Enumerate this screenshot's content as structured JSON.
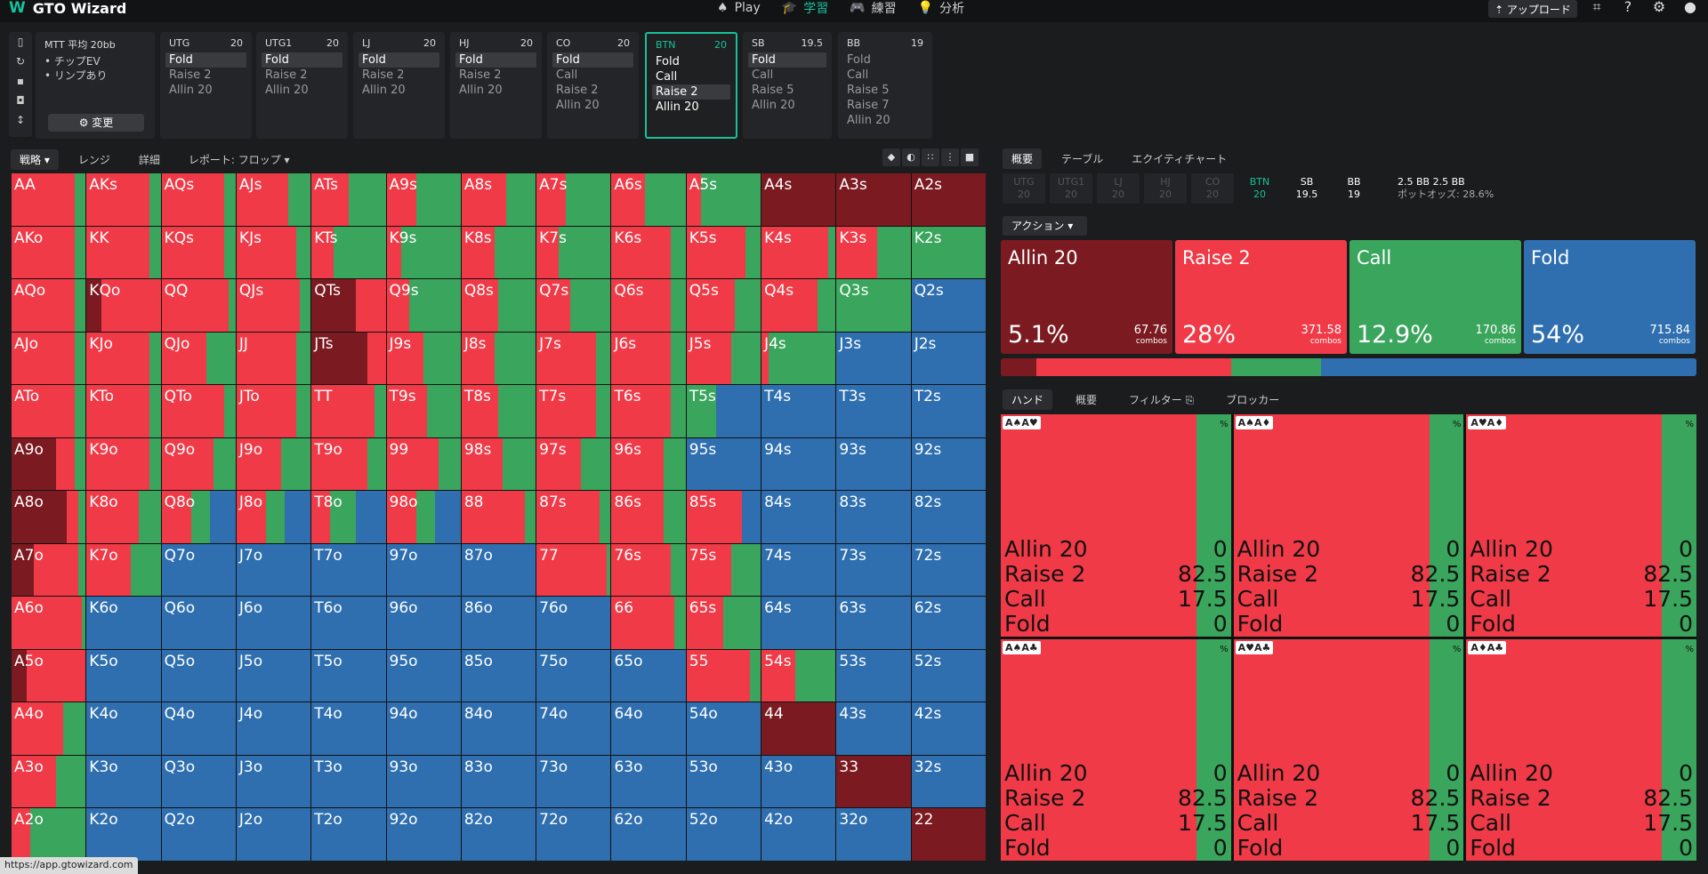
{
  "app": {
    "logo": "W",
    "title": "GTO Wizard"
  },
  "nav": {
    "items": [
      {
        "icon": "♠",
        "label": "Play",
        "active": false
      },
      {
        "icon": "🎓",
        "label": "学習",
        "active": true
      },
      {
        "icon": "🎮",
        "label": "練習",
        "active": false
      },
      {
        "icon": "💡",
        "label": "分析",
        "active": false
      }
    ]
  },
  "toolbar": {
    "upload": "⇡ アップロード"
  },
  "settings": {
    "title": "MTT  平均 20bb",
    "bullets": [
      "• チップEV",
      "• リンプあり"
    ],
    "change": "⚙ 変更"
  },
  "positions": [
    {
      "name": "UTG",
      "stack": "20",
      "actions": [
        "Fold",
        "Raise 2",
        "Allin 20"
      ],
      "selected": 0,
      "active": false
    },
    {
      "name": "UTG1",
      "stack": "20",
      "actions": [
        "Fold",
        "Raise 2",
        "Allin 20"
      ],
      "selected": 0,
      "active": false
    },
    {
      "name": "LJ",
      "stack": "20",
      "actions": [
        "Fold",
        "Raise 2",
        "Allin 20"
      ],
      "selected": 0,
      "active": false
    },
    {
      "name": "HJ",
      "stack": "20",
      "actions": [
        "Fold",
        "Raise 2",
        "Allin 20"
      ],
      "selected": 0,
      "active": false
    },
    {
      "name": "CO",
      "stack": "20",
      "actions": [
        "Fold",
        "Call",
        "Raise 2",
        "Allin 20"
      ],
      "selected": 0,
      "active": false
    },
    {
      "name": "BTN",
      "stack": "20",
      "actions": [
        "Fold",
        "Call",
        "Raise 2",
        "Allin 20"
      ],
      "selected": 2,
      "active": true
    },
    {
      "name": "SB",
      "stack": "19.5",
      "actions": [
        "Fold",
        "Call",
        "Raise 5",
        "Allin 20"
      ],
      "selected": 0,
      "active": false
    },
    {
      "name": "BB",
      "stack": "19",
      "actions": [
        "Fold",
        "Call",
        "Raise 5",
        "Raise 7",
        "Allin 20"
      ],
      "selected": -1,
      "active": false
    }
  ],
  "gridtabs": [
    "戦略 ▾",
    "レンジ",
    "詳細",
    "レポート: フロップ ▾"
  ],
  "righttabs": [
    "概要",
    "テーブル",
    "エクイティチャート"
  ],
  "posbar": [
    {
      "n": "UTG",
      "s": "20",
      "st": "dim"
    },
    {
      "n": "UTG1",
      "s": "20",
      "st": "dim"
    },
    {
      "n": "LJ",
      "s": "20",
      "st": "dim"
    },
    {
      "n": "HJ",
      "s": "20",
      "st": "dim"
    },
    {
      "n": "CO",
      "s": "20",
      "st": "dim"
    },
    {
      "n": "BTN",
      "s": "20",
      "st": "act"
    },
    {
      "n": "SB",
      "s": "19.5",
      "st": "lit"
    },
    {
      "n": "BB",
      "s": "19",
      "st": "lit"
    }
  ],
  "pot": {
    "line1": "2.5 BB  2.5 BB",
    "line2": "ポットオッズ:  28.6%"
  },
  "actionselect": "アクション ▾",
  "actions": [
    {
      "name": "Allin 20",
      "pct": "5.1%",
      "combos": "67.76",
      "unit": "combos",
      "color": "#7b1a20",
      "frac": 5.1
    },
    {
      "name": "Raise 2",
      "pct": "28%",
      "combos": "371.58",
      "unit": "combos",
      "color": "#f03a47",
      "frac": 28
    },
    {
      "name": "Call",
      "pct": "12.9%",
      "combos": "170.86",
      "unit": "combos",
      "color": "#3aa55c",
      "frac": 12.9
    },
    {
      "name": "Fold",
      "pct": "54%",
      "combos": "715.84",
      "unit": "combos",
      "color": "#2f6fb0",
      "frac": 54
    }
  ],
  "handtabs": [
    "ハンド",
    "概要",
    "フィルター ⎘",
    "ブロッカー"
  ],
  "combos": [
    {
      "card": "A♠A♥",
      "rows": [
        [
          "Allin 20",
          "0"
        ],
        [
          "Raise 2",
          "82.5"
        ],
        [
          "Call",
          "17.5"
        ],
        [
          "Fold",
          "0"
        ]
      ]
    },
    {
      "card": "A♠A♦",
      "rows": [
        [
          "Allin 20",
          "0"
        ],
        [
          "Raise 2",
          "82.5"
        ],
        [
          "Call",
          "17.5"
        ],
        [
          "Fold",
          "0"
        ]
      ]
    },
    {
      "card": "A♥A♦",
      "rows": [
        [
          "Allin 20",
          "0"
        ],
        [
          "Raise 2",
          "82.5"
        ],
        [
          "Call",
          "17.5"
        ],
        [
          "Fold",
          "0"
        ]
      ]
    },
    {
      "card": "A♠A♣",
      "rows": [
        [
          "Allin 20",
          "0"
        ],
        [
          "Raise 2",
          "82.5"
        ],
        [
          "Call",
          "17.5"
        ],
        [
          "Fold",
          "0"
        ]
      ]
    },
    {
      "card": "A♥A♣",
      "rows": [
        [
          "Allin 20",
          "0"
        ],
        [
          "Raise 2",
          "82.5"
        ],
        [
          "Call",
          "17.5"
        ],
        [
          "Fold",
          "0"
        ]
      ]
    },
    {
      "card": "A♦A♣",
      "rows": [
        [
          "Allin 20",
          "0"
        ],
        [
          "Raise 2",
          "82.5"
        ],
        [
          "Call",
          "17.5"
        ],
        [
          "Fold",
          "0"
        ]
      ]
    }
  ],
  "pct_symbol": "%",
  "status_url": "https://app.gtowizard.com",
  "colors": {
    "allin": "#7b1a20",
    "raise": "#f03a47",
    "call": "#3aa55c",
    "fold": "#2f6fb0",
    "accent": "#16c19a"
  },
  "grid": {
    "ranks": [
      "A",
      "K",
      "Q",
      "J",
      "T",
      "9",
      "8",
      "7",
      "6",
      "5",
      "4",
      "3",
      "2"
    ],
    "strategies": [
      [
        [
          0,
          85,
          15,
          0
        ],
        [
          0,
          85,
          15,
          0
        ],
        [
          0,
          85,
          15,
          0
        ],
        [
          0,
          70,
          30,
          0
        ],
        [
          0,
          50,
          50,
          0
        ],
        [
          0,
          40,
          60,
          0
        ],
        [
          0,
          60,
          40,
          0
        ],
        [
          0,
          40,
          60,
          0
        ],
        [
          0,
          45,
          55,
          0
        ],
        [
          0,
          20,
          80,
          0
        ],
        [
          100,
          0,
          0,
          0
        ],
        [
          100,
          0,
          0,
          0
        ],
        [
          100,
          0,
          0,
          0
        ]
      ],
      [
        [
          0,
          85,
          15,
          0
        ],
        [
          0,
          85,
          15,
          0
        ],
        [
          0,
          85,
          15,
          0
        ],
        [
          0,
          80,
          20,
          0
        ],
        [
          0,
          30,
          70,
          0
        ],
        [
          0,
          20,
          80,
          0
        ],
        [
          0,
          45,
          55,
          0
        ],
        [
          0,
          30,
          70,
          0
        ],
        [
          0,
          80,
          20,
          0
        ],
        [
          0,
          80,
          20,
          0
        ],
        [
          0,
          90,
          10,
          0
        ],
        [
          0,
          55,
          45,
          0
        ],
        [
          0,
          0,
          100,
          0
        ]
      ],
      [
        [
          0,
          85,
          15,
          0
        ],
        [
          20,
          80,
          0,
          0
        ],
        [
          0,
          90,
          10,
          0
        ],
        [
          0,
          85,
          15,
          0
        ],
        [
          60,
          40,
          0,
          0
        ],
        [
          0,
          30,
          70,
          0
        ],
        [
          0,
          50,
          50,
          0
        ],
        [
          0,
          45,
          55,
          0
        ],
        [
          0,
          80,
          20,
          0
        ],
        [
          0,
          65,
          35,
          0
        ],
        [
          0,
          75,
          25,
          0
        ],
        [
          0,
          0,
          100,
          0
        ],
        [
          0,
          0,
          0,
          100
        ]
      ],
      [
        [
          0,
          85,
          15,
          0
        ],
        [
          0,
          85,
          15,
          0
        ],
        [
          0,
          60,
          40,
          0
        ],
        [
          0,
          80,
          20,
          0
        ],
        [
          75,
          25,
          0,
          0
        ],
        [
          0,
          50,
          50,
          0
        ],
        [
          0,
          45,
          55,
          0
        ],
        [
          0,
          80,
          20,
          0
        ],
        [
          0,
          80,
          20,
          0
        ],
        [
          0,
          60,
          40,
          0
        ],
        [
          0,
          10,
          90,
          0
        ],
        [
          0,
          0,
          0,
          100
        ],
        [
          0,
          0,
          0,
          100
        ]
      ],
      [
        [
          0,
          85,
          15,
          0
        ],
        [
          0,
          85,
          15,
          0
        ],
        [
          0,
          85,
          15,
          0
        ],
        [
          0,
          80,
          20,
          0
        ],
        [
          0,
          85,
          15,
          0
        ],
        [
          0,
          55,
          45,
          0
        ],
        [
          0,
          50,
          50,
          0
        ],
        [
          0,
          80,
          20,
          0
        ],
        [
          0,
          80,
          20,
          0
        ],
        [
          0,
          0,
          40,
          60
        ],
        [
          0,
          0,
          0,
          100
        ],
        [
          0,
          0,
          0,
          100
        ],
        [
          0,
          0,
          0,
          100
        ]
      ],
      [
        [
          60,
          25,
          15,
          0
        ],
        [
          0,
          85,
          15,
          0
        ],
        [
          0,
          70,
          30,
          0
        ],
        [
          0,
          60,
          40,
          0
        ],
        [
          0,
          75,
          25,
          0
        ],
        [
          0,
          70,
          30,
          0
        ],
        [
          0,
          55,
          45,
          0
        ],
        [
          0,
          60,
          40,
          0
        ],
        [
          0,
          70,
          30,
          0
        ],
        [
          0,
          0,
          0,
          100
        ],
        [
          0,
          0,
          0,
          100
        ],
        [
          0,
          0,
          0,
          100
        ],
        [
          0,
          0,
          0,
          100
        ]
      ],
      [
        [
          75,
          15,
          10,
          0
        ],
        [
          0,
          70,
          30,
          0
        ],
        [
          0,
          40,
          25,
          35
        ],
        [
          0,
          40,
          25,
          35
        ],
        [
          0,
          25,
          35,
          40
        ],
        [
          0,
          40,
          25,
          35
        ],
        [
          0,
          85,
          15,
          0
        ],
        [
          0,
          85,
          15,
          0
        ],
        [
          0,
          70,
          30,
          0
        ],
        [
          0,
          75,
          0,
          25
        ],
        [
          0,
          0,
          0,
          100
        ],
        [
          0,
          0,
          0,
          100
        ],
        [
          0,
          0,
          0,
          100
        ]
      ],
      [
        [
          30,
          60,
          10,
          0
        ],
        [
          0,
          60,
          40,
          0
        ],
        [
          0,
          0,
          0,
          100
        ],
        [
          0,
          0,
          0,
          100
        ],
        [
          0,
          0,
          0,
          100
        ],
        [
          0,
          0,
          0,
          100
        ],
        [
          0,
          0,
          0,
          100
        ],
        [
          0,
          95,
          5,
          0
        ],
        [
          0,
          80,
          20,
          0
        ],
        [
          0,
          60,
          40,
          0
        ],
        [
          0,
          0,
          0,
          100
        ],
        [
          0,
          0,
          0,
          100
        ],
        [
          0,
          0,
          0,
          100
        ]
      ],
      [
        [
          0,
          95,
          5,
          0
        ],
        [
          0,
          0,
          0,
          100
        ],
        [
          0,
          0,
          0,
          100
        ],
        [
          0,
          0,
          0,
          100
        ],
        [
          0,
          0,
          0,
          100
        ],
        [
          0,
          0,
          0,
          100
        ],
        [
          0,
          0,
          0,
          100
        ],
        [
          0,
          0,
          0,
          100
        ],
        [
          0,
          85,
          15,
          0
        ],
        [
          0,
          50,
          50,
          0
        ],
        [
          0,
          0,
          0,
          100
        ],
        [
          0,
          0,
          0,
          100
        ],
        [
          0,
          0,
          0,
          100
        ]
      ],
      [
        [
          20,
          80,
          0,
          0
        ],
        [
          0,
          0,
          0,
          100
        ],
        [
          0,
          0,
          0,
          100
        ],
        [
          0,
          0,
          0,
          100
        ],
        [
          0,
          0,
          0,
          100
        ],
        [
          0,
          0,
          0,
          100
        ],
        [
          0,
          0,
          0,
          100
        ],
        [
          0,
          0,
          0,
          100
        ],
        [
          0,
          0,
          0,
          100
        ],
        [
          0,
          85,
          15,
          0
        ],
        [
          0,
          45,
          55,
          0
        ],
        [
          0,
          0,
          0,
          100
        ],
        [
          0,
          0,
          0,
          100
        ]
      ],
      [
        [
          0,
          70,
          30,
          0
        ],
        [
          0,
          0,
          0,
          100
        ],
        [
          0,
          0,
          0,
          100
        ],
        [
          0,
          0,
          0,
          100
        ],
        [
          0,
          0,
          0,
          100
        ],
        [
          0,
          0,
          0,
          100
        ],
        [
          0,
          0,
          0,
          100
        ],
        [
          0,
          0,
          0,
          100
        ],
        [
          0,
          0,
          0,
          100
        ],
        [
          0,
          0,
          0,
          100
        ],
        [
          100,
          0,
          0,
          0
        ],
        [
          0,
          0,
          0,
          100
        ],
        [
          0,
          0,
          0,
          100
        ]
      ],
      [
        [
          0,
          60,
          40,
          0
        ],
        [
          0,
          0,
          0,
          100
        ],
        [
          0,
          0,
          0,
          100
        ],
        [
          0,
          0,
          0,
          100
        ],
        [
          0,
          0,
          0,
          100
        ],
        [
          0,
          0,
          0,
          100
        ],
        [
          0,
          0,
          0,
          100
        ],
        [
          0,
          0,
          0,
          100
        ],
        [
          0,
          0,
          0,
          100
        ],
        [
          0,
          0,
          0,
          100
        ],
        [
          0,
          0,
          0,
          100
        ],
        [
          100,
          0,
          0,
          0
        ],
        [
          0,
          0,
          0,
          100
        ]
      ],
      [
        [
          0,
          25,
          75,
          0
        ],
        [
          0,
          0,
          0,
          100
        ],
        [
          0,
          0,
          0,
          100
        ],
        [
          0,
          0,
          0,
          100
        ],
        [
          0,
          0,
          0,
          100
        ],
        [
          0,
          0,
          0,
          100
        ],
        [
          0,
          0,
          0,
          100
        ],
        [
          0,
          0,
          0,
          100
        ],
        [
          0,
          0,
          0,
          100
        ],
        [
          0,
          0,
          0,
          100
        ],
        [
          0,
          0,
          0,
          100
        ],
        [
          0,
          0,
          0,
          100
        ],
        [
          100,
          0,
          0,
          0
        ]
      ]
    ]
  }
}
